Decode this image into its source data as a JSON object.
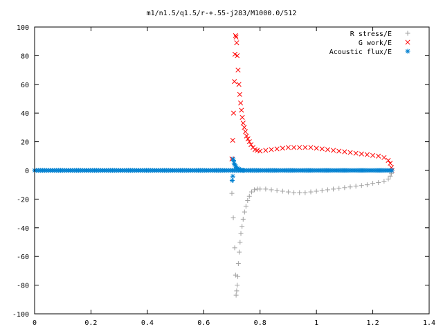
{
  "chart_data": {
    "type": "scatter",
    "title": "m1/n1.5/q1.5/r-+.55-j283/M1000.0/512",
    "xlabel": "",
    "ylabel": "",
    "xlim": [
      0,
      1.4
    ],
    "ylim": [
      -100,
      100
    ],
    "x_ticks": [
      "0",
      "0.2",
      "0.4",
      "0.6",
      "0.8",
      "1",
      "1.2",
      "1.4"
    ],
    "y_ticks": [
      "100",
      "80",
      "60",
      "40",
      "20",
      "0",
      "-20",
      "-40",
      "-60",
      "-80",
      "-100"
    ],
    "grid": false,
    "legend_position": "top-right",
    "series": [
      {
        "name": "R stress/E",
        "marker": "plus",
        "color": "#a0a0a0",
        "points": [
          [
            0.7,
            -16
          ],
          [
            0.705,
            -33
          ],
          [
            0.71,
            -54
          ],
          [
            0.713,
            -73
          ],
          [
            0.715,
            -87
          ],
          [
            0.717,
            -84
          ],
          [
            0.719,
            -80
          ],
          [
            0.721,
            -74
          ],
          [
            0.723,
            -65
          ],
          [
            0.726,
            -57
          ],
          [
            0.729,
            -50
          ],
          [
            0.732,
            -44
          ],
          [
            0.736,
            -39
          ],
          [
            0.74,
            -34
          ],
          [
            0.745,
            -29
          ],
          [
            0.75,
            -25
          ],
          [
            0.756,
            -21
          ],
          [
            0.762,
            -18
          ],
          [
            0.77,
            -15
          ],
          [
            0.78,
            -13.5
          ],
          [
            0.79,
            -13
          ],
          [
            0.8,
            -13
          ],
          [
            0.82,
            -13
          ],
          [
            0.84,
            -13.5
          ],
          [
            0.86,
            -14
          ],
          [
            0.88,
            -14.5
          ],
          [
            0.9,
            -15
          ],
          [
            0.92,
            -15.5
          ],
          [
            0.94,
            -15.5
          ],
          [
            0.96,
            -15.5
          ],
          [
            0.98,
            -15
          ],
          [
            1.0,
            -14.5
          ],
          [
            1.02,
            -14
          ],
          [
            1.04,
            -13.5
          ],
          [
            1.06,
            -13
          ],
          [
            1.08,
            -12.5
          ],
          [
            1.1,
            -12
          ],
          [
            1.12,
            -11.5
          ],
          [
            1.14,
            -11
          ],
          [
            1.16,
            -10.5
          ],
          [
            1.18,
            -10
          ],
          [
            1.2,
            -9
          ],
          [
            1.22,
            -8.5
          ],
          [
            1.24,
            -7.5
          ],
          [
            1.255,
            -6
          ],
          [
            1.262,
            -4
          ],
          [
            1.266,
            -2
          ],
          [
            1.268,
            0
          ]
        ]
      },
      {
        "name": "G work/E",
        "marker": "cross",
        "color": "#ff0000",
        "points": [
          [
            0.7,
            8
          ],
          [
            0.703,
            21
          ],
          [
            0.706,
            40
          ],
          [
            0.709,
            62
          ],
          [
            0.711,
            81
          ],
          [
            0.713,
            94
          ],
          [
            0.715,
            93
          ],
          [
            0.717,
            89
          ],
          [
            0.719,
            80
          ],
          [
            0.722,
            70
          ],
          [
            0.725,
            60
          ],
          [
            0.728,
            53
          ],
          [
            0.731,
            47
          ],
          [
            0.734,
            42
          ],
          [
            0.737,
            37
          ],
          [
            0.74,
            33
          ],
          [
            0.744,
            30
          ],
          [
            0.748,
            27
          ],
          [
            0.752,
            24
          ],
          [
            0.757,
            22
          ],
          [
            0.762,
            20
          ],
          [
            0.768,
            18
          ],
          [
            0.775,
            16
          ],
          [
            0.782,
            14.5
          ],
          [
            0.79,
            14
          ],
          [
            0.8,
            13.5
          ],
          [
            0.82,
            14
          ],
          [
            0.84,
            14.5
          ],
          [
            0.86,
            15
          ],
          [
            0.88,
            15.5
          ],
          [
            0.9,
            16
          ],
          [
            0.92,
            16
          ],
          [
            0.94,
            16
          ],
          [
            0.96,
            16
          ],
          [
            0.98,
            16
          ],
          [
            1.0,
            15.5
          ],
          [
            1.02,
            15
          ],
          [
            1.04,
            14.5
          ],
          [
            1.06,
            14
          ],
          [
            1.08,
            13.5
          ],
          [
            1.1,
            13
          ],
          [
            1.12,
            12.5
          ],
          [
            1.14,
            12
          ],
          [
            1.16,
            11.5
          ],
          [
            1.18,
            11
          ],
          [
            1.2,
            10.5
          ],
          [
            1.22,
            10
          ],
          [
            1.24,
            9
          ],
          [
            1.255,
            7
          ],
          [
            1.262,
            5
          ],
          [
            1.266,
            2
          ],
          [
            1.268,
            0
          ]
        ]
      },
      {
        "name": "Acoustic flux/E",
        "marker": "star",
        "color": "#0080d0",
        "points": [
          [
            0.701,
            -7
          ],
          [
            0.703,
            -4
          ],
          [
            0.704,
            8
          ],
          [
            0.706,
            7
          ],
          [
            0.708,
            5
          ],
          [
            0.71,
            4
          ],
          [
            0.713,
            3
          ],
          [
            0.716,
            2
          ],
          [
            0.72,
            1.5
          ],
          [
            0.725,
            1
          ],
          [
            0.73,
            0.5
          ],
          [
            0.735,
            0.3
          ],
          [
            0.74,
            0
          ]
        ],
        "baseline": {
          "y": 0,
          "x_from": 0,
          "x_to": 1.268,
          "count": 180
        }
      }
    ]
  }
}
